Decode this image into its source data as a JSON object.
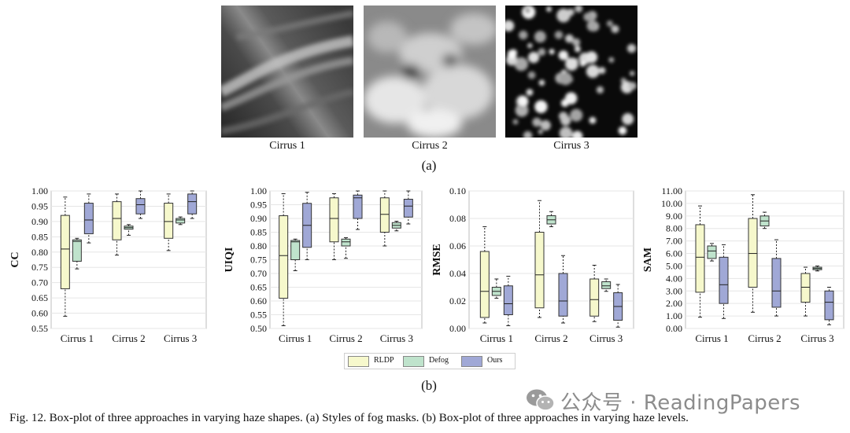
{
  "figure": {
    "panel_a_label": "(a)",
    "panel_b_label": "(b)",
    "caption": "Fig. 12.   Box-plot of three approaches in varying haze shapes. (a) Styles of fog masks. (b) Box-plot of three approaches in varying haze levels.",
    "images": [
      {
        "caption": "Cirrus 1",
        "style": "wispy streaks, dark gray"
      },
      {
        "caption": "Cirrus 2",
        "style": "dense bright clouds"
      },
      {
        "caption": "Cirrus 3",
        "style": "sparse cloud puffs on black"
      }
    ],
    "legend": [
      {
        "label": "RLDP",
        "color": "#f6f8cc"
      },
      {
        "label": "Defog",
        "color": "#bfe3cc"
      },
      {
        "label": "Ours",
        "color": "#a0a8d6"
      }
    ],
    "watermark": "公众号 · ReadingPapers"
  },
  "chart_data": [
    {
      "type": "boxplot",
      "ylabel": "CC",
      "ylim": [
        0.55,
        1.0
      ],
      "yticks": [
        "0.55",
        "0.60",
        "0.65",
        "0.70",
        "0.75",
        "0.80",
        "0.85",
        "0.90",
        "0.95",
        "1.00"
      ],
      "categories": [
        "Cirrus 1",
        "Cirrus 2",
        "Cirrus 3"
      ],
      "series": [
        {
          "name": "RLDP",
          "boxes": [
            [
              0.59,
              0.68,
              0.81,
              0.92,
              0.98
            ],
            [
              0.79,
              0.84,
              0.91,
              0.965,
              0.99
            ],
            [
              0.805,
              0.845,
              0.9,
              0.96,
              0.99
            ]
          ]
        },
        {
          "name": "Defog",
          "boxes": [
            [
              0.745,
              0.77,
              0.835,
              0.84,
              0.845
            ],
            [
              0.855,
              0.875,
              0.88,
              0.885,
              0.89
            ],
            [
              0.89,
              0.895,
              0.905,
              0.91,
              0.915
            ]
          ]
        },
        {
          "name": "Ours",
          "boxes": [
            [
              0.83,
              0.86,
              0.905,
              0.96,
              0.99
            ],
            [
              0.91,
              0.925,
              0.955,
              0.975,
              1.0
            ],
            [
              0.91,
              0.925,
              0.965,
              0.99,
              1.0
            ]
          ]
        }
      ]
    },
    {
      "type": "boxplot",
      "ylabel": "UIQI",
      "ylim": [
        0.5,
        1.0
      ],
      "yticks": [
        "0.50",
        "0.55",
        "0.60",
        "0.65",
        "0.70",
        "0.75",
        "0.80",
        "0.85",
        "0.90",
        "0.95",
        "1.00"
      ],
      "categories": [
        "Cirrus 1",
        "Cirrus 2",
        "Cirrus 3"
      ],
      "series": [
        {
          "name": "RLDP",
          "boxes": [
            [
              0.51,
              0.61,
              0.765,
              0.91,
              0.99
            ],
            [
              0.75,
              0.815,
              0.9,
              0.975,
              0.99
            ],
            [
              0.8,
              0.85,
              0.915,
              0.975,
              1.0
            ]
          ]
        },
        {
          "name": "Defog",
          "boxes": [
            [
              0.71,
              0.75,
              0.815,
              0.82,
              0.825
            ],
            [
              0.755,
              0.8,
              0.815,
              0.825,
              0.83
            ],
            [
              0.855,
              0.865,
              0.875,
              0.885,
              0.89
            ]
          ]
        },
        {
          "name": "Ours",
          "boxes": [
            [
              0.75,
              0.795,
              0.875,
              0.955,
              0.995
            ],
            [
              0.86,
              0.9,
              0.975,
              0.985,
              1.0
            ],
            [
              0.88,
              0.905,
              0.945,
              0.97,
              1.0
            ]
          ]
        }
      ]
    },
    {
      "type": "boxplot",
      "ylabel": "RMSE",
      "ylim": [
        0.0,
        0.1
      ],
      "yticks": [
        "0.00",
        "0.02",
        "0.04",
        "0.06",
        "0.08",
        "0.10"
      ],
      "categories": [
        "Cirrus 1",
        "Cirrus 2",
        "Cirrus 3"
      ],
      "series": [
        {
          "name": "RLDP",
          "boxes": [
            [
              0.004,
              0.008,
              0.027,
              0.056,
              0.074
            ],
            [
              0.008,
              0.015,
              0.039,
              0.07,
              0.093
            ],
            [
              0.005,
              0.009,
              0.021,
              0.036,
              0.046
            ]
          ]
        },
        {
          "name": "Defog",
          "boxes": [
            [
              0.022,
              0.024,
              0.027,
              0.03,
              0.036
            ],
            [
              0.074,
              0.076,
              0.079,
              0.082,
              0.085
            ],
            [
              0.027,
              0.029,
              0.031,
              0.034,
              0.036
            ]
          ]
        },
        {
          "name": "Ours",
          "boxes": [
            [
              0.002,
              0.01,
              0.018,
              0.031,
              0.038
            ],
            [
              0.004,
              0.009,
              0.02,
              0.04,
              0.053
            ],
            [
              0.001,
              0.006,
              0.016,
              0.026,
              0.032
            ]
          ]
        }
      ]
    },
    {
      "type": "boxplot",
      "ylabel": "SAM",
      "ylim": [
        0.0,
        11.0
      ],
      "yticks": [
        "0.00",
        "1.00",
        "2.00",
        "3.00",
        "4.00",
        "5.00",
        "6.00",
        "7.00",
        "8.00",
        "9.00",
        "10.00",
        "11.00"
      ],
      "categories": [
        "Cirrus 1",
        "Cirrus 2",
        "Cirrus 3"
      ],
      "series": [
        {
          "name": "RLDP",
          "boxes": [
            [
              0.9,
              2.9,
              5.7,
              8.3,
              9.8
            ],
            [
              1.3,
              3.3,
              6.0,
              8.8,
              10.7
            ],
            [
              1.0,
              2.1,
              3.3,
              4.4,
              4.9
            ]
          ]
        },
        {
          "name": "Defog",
          "boxes": [
            [
              5.4,
              5.6,
              6.2,
              6.6,
              6.8
            ],
            [
              8.0,
              8.2,
              8.6,
              9.0,
              9.3
            ],
            [
              4.6,
              4.7,
              4.8,
              4.9,
              5.0
            ]
          ]
        },
        {
          "name": "Ours",
          "boxes": [
            [
              0.8,
              2.0,
              3.5,
              5.7,
              6.7
            ],
            [
              1.0,
              1.7,
              3.0,
              5.6,
              7.1
            ],
            [
              0.3,
              0.7,
              2.1,
              3.0,
              3.3
            ]
          ]
        }
      ]
    }
  ]
}
